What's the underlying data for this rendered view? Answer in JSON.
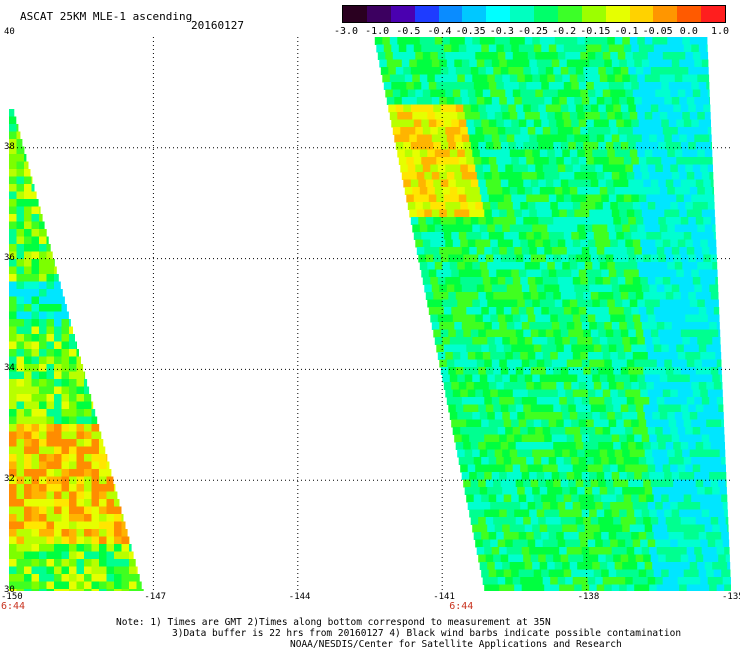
{
  "header": {
    "title": "ASCAT 25KM MLE-1 ascending",
    "date": "20160127"
  },
  "colorbar": {
    "colors": [
      "#2a0020",
      "#3c0060",
      "#4a00b0",
      "#1e3cff",
      "#0a8cff",
      "#00c8ff",
      "#00ffff",
      "#00ffc0",
      "#00ff6a",
      "#3cff28",
      "#9cff00",
      "#e6ff00",
      "#ffd200",
      "#ff9600",
      "#ff5a00",
      "#ff1e1e"
    ],
    "tick_labels": [
      "-3.0",
      "-1.0",
      "-0.5",
      "-0.4",
      "-0.35",
      "-0.3",
      "-0.25",
      "-0.2",
      "-0.15",
      "-0.1",
      "-0.05",
      "0.0",
      "1.0"
    ]
  },
  "map": {
    "lon_labels": [
      "-150",
      "-147",
      "-144",
      "-141",
      "-138",
      "-135"
    ],
    "lat_labels": [
      "40",
      "38",
      "36",
      "34",
      "32",
      "30"
    ],
    "lon_range": [
      -150,
      -135
    ],
    "lat_range": [
      30,
      40
    ],
    "grid_lons": [
      -147,
      -144,
      -141,
      -138
    ],
    "grid_lats": [
      32,
      34,
      36,
      38
    ],
    "time_labels": [
      {
        "text": "6:44",
        "lon": -150
      },
      {
        "text": "6:44",
        "lon": -141
      }
    ],
    "swaths": [
      {
        "name": "western-swath",
        "lat_top": 38.7,
        "lon_left_top": -150,
        "lon_right_top": -149.9,
        "lat_bottom": 30,
        "lon_left_bottom": -150,
        "lon_right_bottom": -147.2
      },
      {
        "name": "eastern-swath",
        "lat_top": 40,
        "lon_left_top": -142.4,
        "lon_right_top": -135.5,
        "lat_bottom": 30,
        "lon_left_bottom": -140.1,
        "lon_right_bottom": -135
      }
    ]
  },
  "notes": {
    "line1": "Note: 1) Times are GMT 2)Times along bottom correspond to measurement at 35N",
    "line2": "3)Data buffer is 22 hrs from 20160127 4) Black wind barbs indicate possible contamination",
    "line3": "NOAA/NESDIS/Center for Satellite Applications and Research"
  }
}
